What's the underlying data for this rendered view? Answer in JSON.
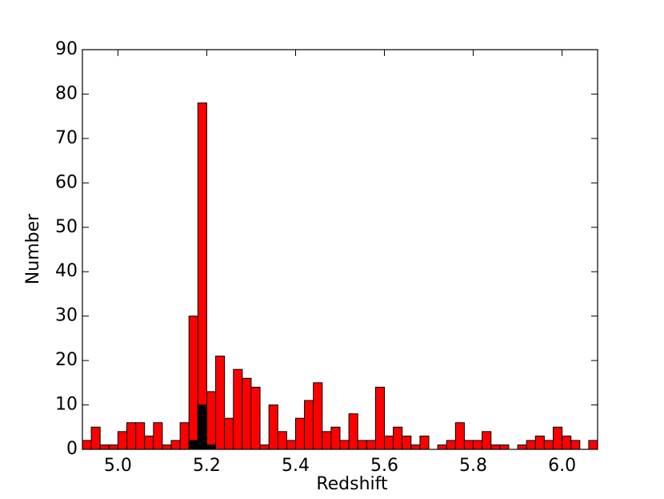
{
  "chart_data": {
    "type": "histogram",
    "xlabel": "Redshift",
    "ylabel": "Number",
    "bins": [
      4.92,
      4.94,
      4.96,
      4.98,
      5.0,
      5.02,
      5.04,
      5.06,
      5.08,
      5.1,
      5.12,
      5.14,
      5.16,
      5.18,
      5.2,
      5.22,
      5.24,
      5.26,
      5.28,
      5.3,
      5.32,
      5.34,
      5.36,
      5.38,
      5.4,
      5.42,
      5.44,
      5.46,
      5.48,
      5.5,
      5.52,
      5.54,
      5.56,
      5.58,
      5.6,
      5.62,
      5.64,
      5.66,
      5.68,
      5.7,
      5.72,
      5.74,
      5.76,
      5.78,
      5.8,
      5.82,
      5.84,
      5.86,
      5.88,
      5.9,
      5.92,
      5.94,
      5.96,
      5.98,
      6.0,
      6.02,
      6.04,
      6.06,
      6.08
    ],
    "series": [
      {
        "color": "#ff0000",
        "values": [
          2,
          5,
          1,
          1,
          4,
          6,
          6,
          3,
          6,
          1,
          2,
          6,
          30,
          78,
          13,
          21,
          7,
          18,
          16,
          14,
          1,
          10,
          4,
          2,
          7,
          11,
          15,
          4,
          5,
          2,
          8,
          2,
          2,
          14,
          3,
          5,
          3,
          1,
          3,
          0,
          1,
          2,
          6,
          2,
          2,
          4,
          1,
          1,
          0,
          1,
          2,
          3,
          2,
          5,
          3,
          2,
          0,
          2
        ]
      },
      {
        "color": "#000000",
        "values": [
          0,
          0,
          0,
          0,
          0,
          0,
          0,
          0,
          0,
          0,
          0,
          0,
          2,
          10,
          1,
          0,
          0,
          0,
          0,
          0,
          0,
          0,
          0,
          0,
          0,
          0,
          0,
          0,
          0,
          0,
          0,
          0,
          0,
          0,
          0,
          0,
          0,
          0,
          0,
          0,
          0,
          0,
          0,
          0,
          0,
          0,
          0,
          0,
          0,
          0,
          0,
          0,
          0,
          0,
          0,
          0,
          0,
          0
        ]
      }
    ],
    "xlim": [
      4.92,
      6.08
    ],
    "ylim": [
      0,
      90
    ],
    "xticks": [
      {
        "value": 5.0,
        "label": "5.0"
      },
      {
        "value": 5.2,
        "label": "5.2"
      },
      {
        "value": 5.4,
        "label": "5.4"
      },
      {
        "value": 5.6,
        "label": "5.6"
      },
      {
        "value": 5.8,
        "label": "5.8"
      },
      {
        "value": 6.0,
        "label": "6.0"
      }
    ],
    "yticks": [
      0,
      10,
      20,
      30,
      40,
      50,
      60,
      70,
      80,
      90
    ],
    "edgecolor": "#000000"
  }
}
